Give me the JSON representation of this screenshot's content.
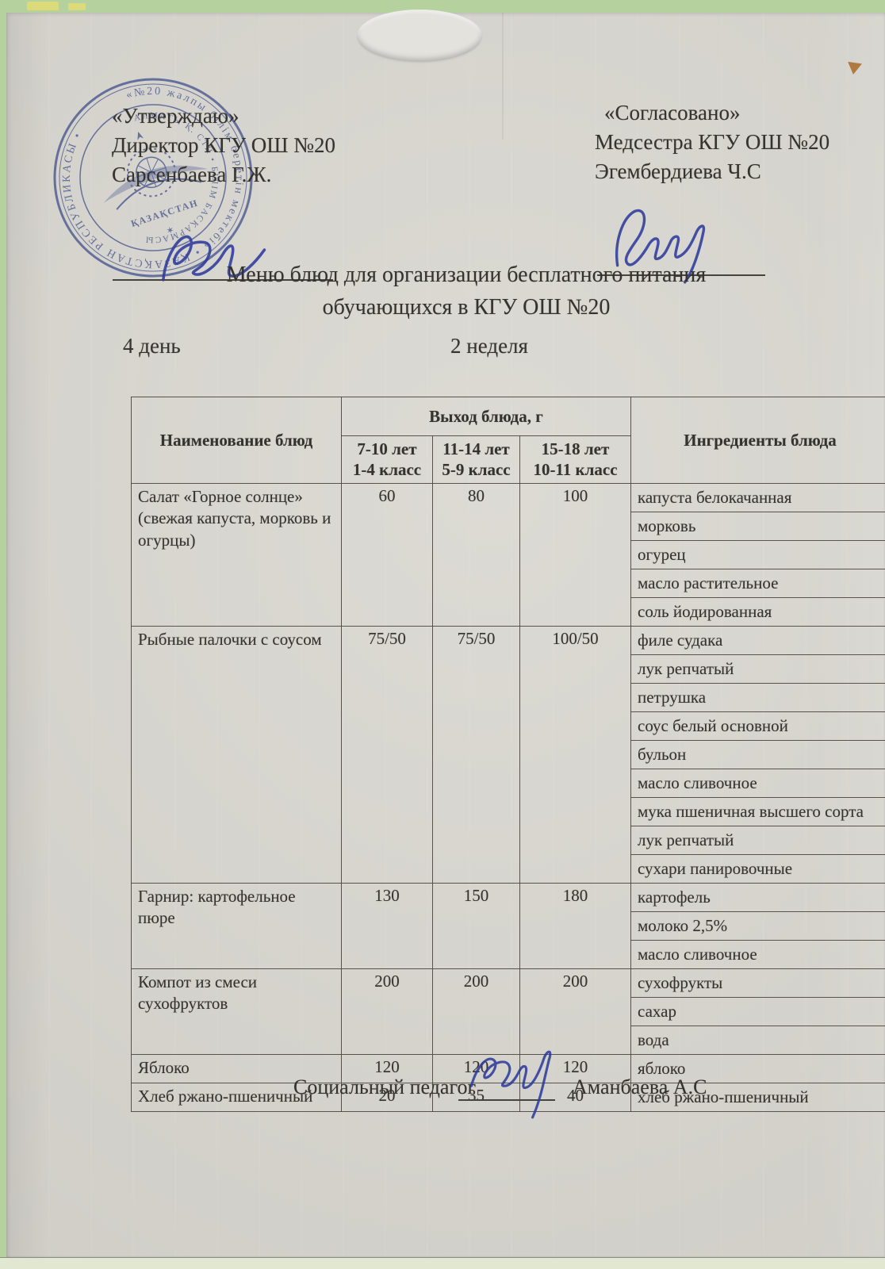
{
  "approval_left": {
    "quote": "«Утверждаю»",
    "role": "Директор КГУ ОШ №20",
    "name": "Сарсенбаева Г.Ж."
  },
  "approval_right": {
    "quote": "«Согласовано»",
    "role": "Медсестра КГУ ОШ №20",
    "name": "Эгембердиева Ч.С"
  },
  "title": {
    "line1": "Меню блюд для организации бесплатного питания",
    "line2": "обучающихся в КГУ ОШ №20"
  },
  "day_label": "4 день",
  "week_label": "2 неделя",
  "table": {
    "col_name": "Наименование блюд",
    "col_output": "Выход блюда, г",
    "col_age1": "7-10 лет",
    "col_class1": "1-4 класс",
    "col_age2": "11-14 лет",
    "col_class2": "5-9 класс",
    "col_age3": "15-18 лет",
    "col_class3": "10-11 класс",
    "col_ingredients": "Ингредиенты блюда",
    "rows": [
      {
        "dish": "Салат «Горное солнце» (свежая капуста, морковь и огурцы)",
        "portions": [
          "60",
          "80",
          "100"
        ],
        "ingredients": [
          "капуста белокачанная",
          "морковь",
          "огурец",
          "масло растительное",
          "соль йодированная"
        ]
      },
      {
        "dish": "Рыбные палочки с соусом",
        "portions": [
          "75/50",
          "75/50",
          "100/50"
        ],
        "ingredients": [
          "филе судака",
          "лук репчатый",
          "петрушка",
          "соус белый основной",
          "бульон",
          "масло сливочное",
          "мука пшеничная высшего сорта",
          "лук репчатый",
          "сухари панировочные"
        ]
      },
      {
        "dish": "Гарнир: картофельное пюре",
        "portions": [
          "130",
          "150",
          "180"
        ],
        "ingredients": [
          "картофель",
          "молоко 2,5%",
          "масло сливочное"
        ]
      },
      {
        "dish": "Компот из смеси сухофруктов",
        "portions": [
          "200",
          "200",
          "200"
        ],
        "ingredients": [
          "сухофрукты",
          "сахар",
          "вода"
        ]
      },
      {
        "dish": "Яблоко",
        "portions": [
          "120",
          "120",
          "120"
        ],
        "ingredients": [
          "яблоко"
        ]
      },
      {
        "dish": "Хлеб ржано-пшеничный",
        "portions": [
          "20",
          "35",
          "40"
        ],
        "ingredients": [
          "хлеб ржано-пшеничный"
        ]
      }
    ]
  },
  "footer": {
    "role": "Социальный педагог",
    "name": "Аманбаева А.С"
  },
  "stamp": {
    "outer_text": "«№20 жалпы білім беретін мектебі» • ҚАЗАҚСТАН РЕСПУБЛИКАСЫ •",
    "inner_text": "АЛМАТЫ Қ. СТН • БІЛІМ БАСҚАРМАСЫ",
    "banner": "ҚАЗАҚСТАН"
  },
  "colors": {
    "stamp_blue": "#5b6cb3",
    "ink_blue": "#2d3b9c",
    "board_green": "#b5d29e",
    "paper": "#d8d6cf"
  }
}
